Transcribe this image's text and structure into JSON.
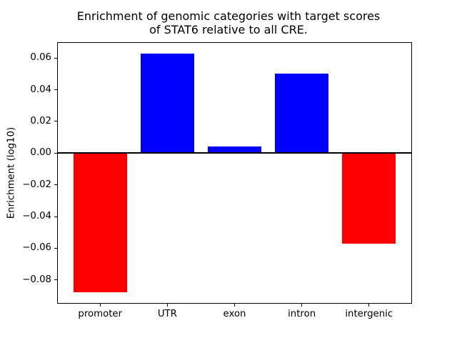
{
  "chart_data": {
    "type": "bar",
    "title": "Enrichment of genomic categories with target scores\nof STAT6 relative to all CRE.",
    "xlabel": "",
    "ylabel": "Enrichment (log10)",
    "categories": [
      "promoter",
      "UTR",
      "exon",
      "intron",
      "intergenic"
    ],
    "values": [
      -0.088,
      0.063,
      0.004,
      0.05,
      -0.057
    ],
    "positive_color": "#0000ff",
    "negative_color": "#ff0000",
    "axis_color": "#000000",
    "background_color": "#ffffff",
    "ylim": [
      -0.095,
      0.07
    ],
    "xlim": [
      -0.64,
      4.64
    ],
    "bar_width": 0.8,
    "yticks": [
      0.06,
      0.04,
      0.02,
      0.0,
      -0.02,
      -0.04,
      -0.06,
      -0.08
    ],
    "ytick_labels": [
      "0.06",
      "0.04",
      "0.02",
      "0.00",
      "−0.02",
      "−0.04",
      "−0.06",
      "−0.08"
    ],
    "grid": false,
    "legend": false,
    "zero_line": true
  }
}
